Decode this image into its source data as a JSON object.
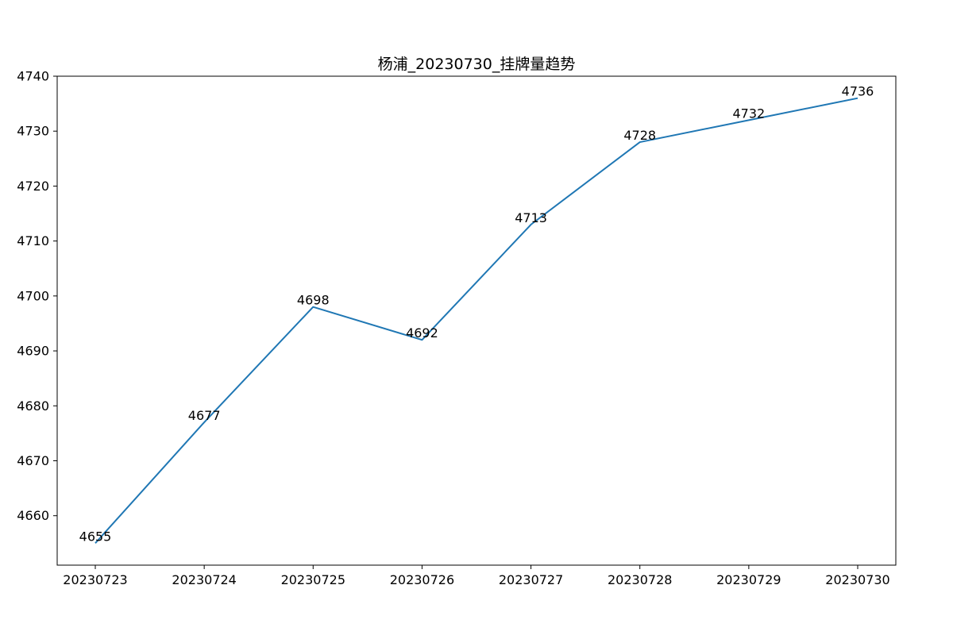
{
  "chart_data": {
    "type": "line",
    "title": "杨浦_20230730_挂牌量趋势",
    "xlabel": "",
    "ylabel": "",
    "categories": [
      "20230723",
      "20230724",
      "20230725",
      "20230726",
      "20230727",
      "20230728",
      "20230729",
      "20230730"
    ],
    "series": [
      {
        "values": [
          4655,
          4677,
          4698,
          4692,
          4713,
          4728,
          4732,
          4736
        ],
        "color": "#1f77b4"
      }
    ],
    "data_labels": [
      "4655",
      "4677",
      "4698",
      "4692",
      "4713",
      "4728",
      "4732",
      "4736"
    ],
    "ylim": [
      4651,
      4740
    ],
    "yticks": [
      4660,
      4670,
      4680,
      4690,
      4700,
      4710,
      4720,
      4730,
      4740
    ],
    "ytick_labels": [
      "4660",
      "4670",
      "4680",
      "4690",
      "4700",
      "4710",
      "4720",
      "4730",
      "4740"
    ],
    "grid": false,
    "legend": "none"
  }
}
